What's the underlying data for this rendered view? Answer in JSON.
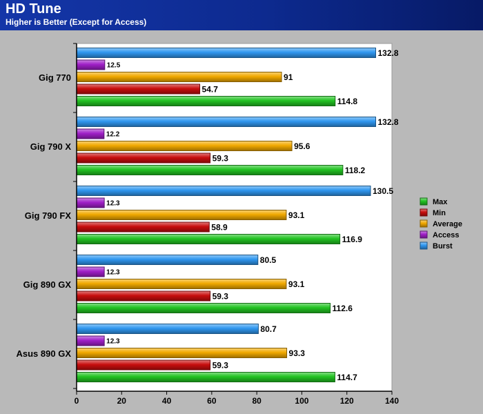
{
  "header": {
    "title": "HD Tune",
    "subtitle": "Higher is Better (Except for Access)"
  },
  "colors": {
    "header": "#0d2a8f",
    "background": "#b9b9b9",
    "plot_background": "#ffffff"
  },
  "chart_data": {
    "type": "bar",
    "orientation": "horizontal",
    "title": "HD Tune",
    "subtitle": "Higher is Better (Except for Access)",
    "xlabel": "",
    "ylabel": "",
    "xlim": [
      0,
      140
    ],
    "ticks": [
      0,
      20,
      40,
      60,
      80,
      100,
      120,
      140
    ],
    "grid": false,
    "legend_position": "right",
    "categories": [
      "Gig 770",
      "Gig 790 X",
      "Gig 790 FX",
      "Gig 890 GX",
      "Asus 890 GX"
    ],
    "series": [
      {
        "name": "Max",
        "color": "#22c322",
        "values": [
          114.8,
          118.2,
          116.9,
          112.6,
          114.7
        ]
      },
      {
        "name": "Min",
        "color": "#c80e0e",
        "values": [
          54.7,
          59.3,
          58.9,
          59.3,
          59.3
        ]
      },
      {
        "name": "Average",
        "color": "#f2a900",
        "values": [
          91,
          95.6,
          93.1,
          93.1,
          93.3
        ]
      },
      {
        "name": "Access",
        "color": "#a020c8",
        "values": [
          12.5,
          12.2,
          12.3,
          12.3,
          12.3
        ]
      },
      {
        "name": "Burst",
        "color": "#2f97f0",
        "values": [
          132.8,
          132.8,
          130.5,
          80.5,
          80.7
        ]
      }
    ],
    "bar_order_top_to_bottom": [
      "Burst",
      "Access",
      "Average",
      "Min",
      "Max"
    ],
    "legend_order": [
      "Max",
      "Min",
      "Average",
      "Access",
      "Burst"
    ]
  }
}
